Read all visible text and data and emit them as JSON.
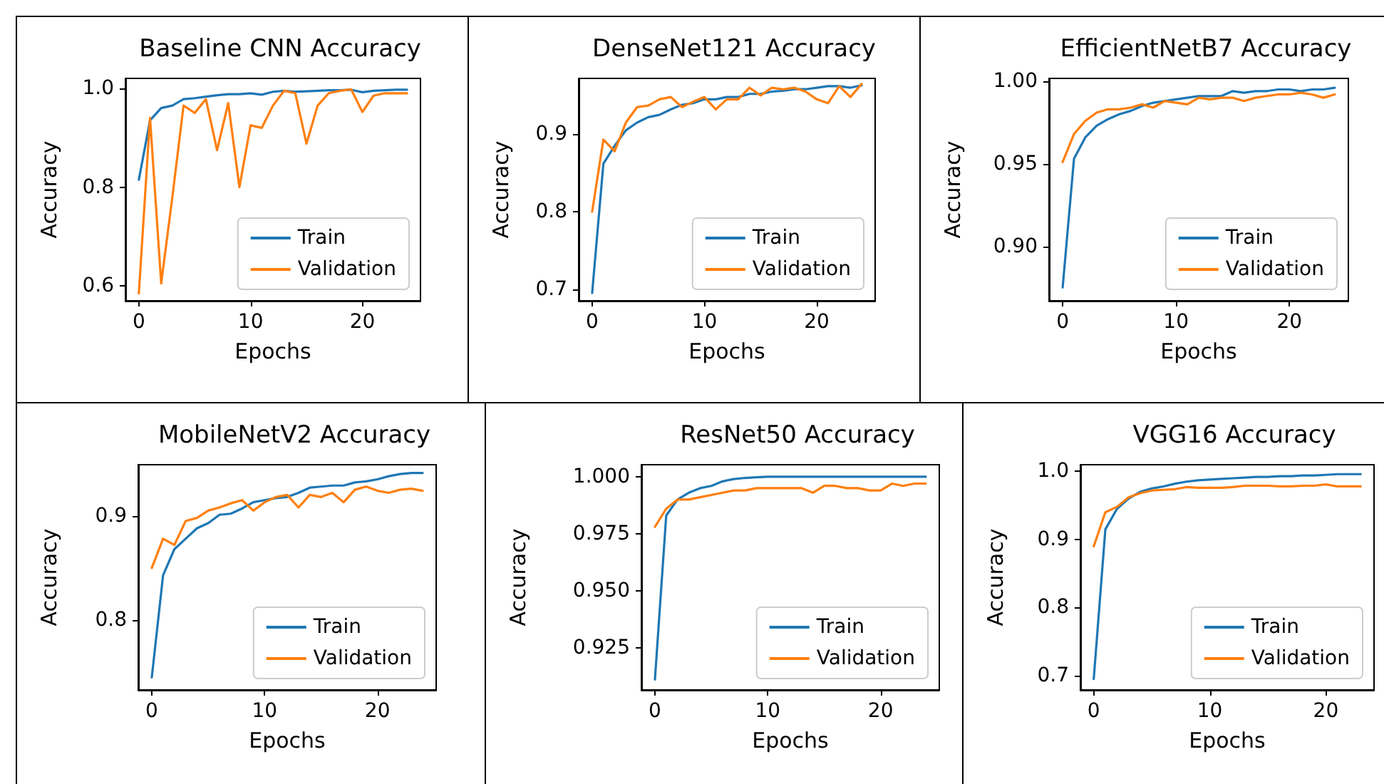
{
  "chart_data": [
    {
      "type": "line",
      "title": "Baseline CNN Accuracy",
      "xlabel": "Epochs",
      "ylabel": "Accuracy",
      "legend": "bottom right",
      "marker": "none",
      "line_style": "solid",
      "grid": false,
      "x": [
        0,
        1,
        2,
        3,
        4,
        5,
        6,
        7,
        8,
        9,
        10,
        11,
        12,
        13,
        14,
        15,
        16,
        17,
        18,
        19,
        20,
        21,
        22,
        23,
        24
      ],
      "xlim": [
        -1.2,
        25.2
      ],
      "xticks": [
        0,
        10,
        20
      ],
      "ylim": [
        0.57,
        1.02
      ],
      "yticks": [
        0.6,
        0.8,
        {
          "value": 1,
          "label": "1.0"
        }
      ],
      "series": [
        {
          "name": "Train",
          "color": "#1f77b4",
          "values": [
            0.815,
            0.935,
            0.96,
            0.965,
            0.978,
            0.98,
            0.983,
            0.986,
            0.988,
            0.988,
            0.99,
            0.987,
            0.993,
            0.995,
            0.993,
            0.994,
            0.995,
            0.996,
            0.996,
            0.997,
            0.992,
            0.995,
            0.996,
            0.997,
            0.997
          ]
        },
        {
          "name": "Validation",
          "color": "#ff7f0e",
          "values": [
            0.585,
            0.94,
            0.605,
            0.78,
            0.965,
            0.95,
            0.978,
            0.875,
            0.97,
            0.8,
            0.925,
            0.92,
            0.965,
            0.995,
            0.99,
            0.888,
            0.965,
            0.99,
            0.995,
            0.998,
            0.952,
            0.985,
            0.99,
            0.99,
            0.99
          ]
        }
      ]
    },
    {
      "type": "line",
      "title": "DenseNet121 Accuracy",
      "xlabel": "Epochs",
      "ylabel": "Accuracy",
      "legend": "bottom right",
      "marker": "none",
      "line_style": "solid",
      "grid": false,
      "x": [
        0,
        1,
        2,
        3,
        4,
        5,
        6,
        7,
        8,
        9,
        10,
        11,
        12,
        13,
        14,
        15,
        16,
        17,
        18,
        19,
        20,
        21,
        22,
        23,
        24
      ],
      "xlim": [
        -1.2,
        25.2
      ],
      "xticks": [
        0,
        10,
        20
      ],
      "ylim": [
        0.685,
        0.972
      ],
      "yticks": [
        0.7,
        0.8,
        0.9
      ],
      "series": [
        {
          "name": "Train",
          "color": "#1f77b4",
          "values": [
            0.695,
            0.862,
            0.885,
            0.905,
            0.915,
            0.922,
            0.925,
            0.932,
            0.938,
            0.94,
            0.945,
            0.945,
            0.948,
            0.948,
            0.952,
            0.952,
            0.955,
            0.956,
            0.958,
            0.958,
            0.96,
            0.962,
            0.962,
            0.96,
            0.963
          ]
        },
        {
          "name": "Validation",
          "color": "#ff7f0e",
          "values": [
            0.8,
            0.893,
            0.878,
            0.915,
            0.935,
            0.937,
            0.945,
            0.948,
            0.935,
            0.942,
            0.948,
            0.932,
            0.945,
            0.945,
            0.96,
            0.95,
            0.96,
            0.958,
            0.96,
            0.955,
            0.945,
            0.94,
            0.962,
            0.948,
            0.965
          ]
        }
      ]
    },
    {
      "type": "line",
      "title": "EfficientNetB7 Accuracy",
      "xlabel": "Epochs",
      "ylabel": "Accuracy",
      "legend": "bottom right",
      "marker": "none",
      "line_style": "solid",
      "grid": false,
      "x": [
        0,
        1,
        2,
        3,
        4,
        5,
        6,
        7,
        8,
        9,
        10,
        11,
        12,
        13,
        14,
        15,
        16,
        17,
        18,
        19,
        20,
        21,
        22,
        23,
        24
      ],
      "xlim": [
        -1.2,
        25.2
      ],
      "xticks": [
        0,
        10,
        20
      ],
      "ylim": [
        0.867,
        1.0017
      ],
      "yticks": [
        {
          "value": 0.9,
          "label": "0.90"
        },
        0.95,
        {
          "value": 1,
          "label": "1.00"
        }
      ],
      "series": [
        {
          "name": "Train",
          "color": "#1f77b4",
          "values": [
            0.875,
            0.953,
            0.966,
            0.973,
            0.977,
            0.98,
            0.982,
            0.985,
            0.987,
            0.988,
            0.989,
            0.99,
            0.991,
            0.991,
            0.991,
            0.994,
            0.993,
            0.994,
            0.994,
            0.995,
            0.995,
            0.994,
            0.995,
            0.995,
            0.996
          ]
        },
        {
          "name": "Validation",
          "color": "#ff7f0e",
          "values": [
            0.951,
            0.968,
            0.976,
            0.981,
            0.983,
            0.983,
            0.984,
            0.986,
            0.984,
            0.988,
            0.987,
            0.986,
            0.99,
            0.989,
            0.99,
            0.99,
            0.988,
            0.99,
            0.991,
            0.992,
            0.992,
            0.993,
            0.992,
            0.99,
            0.992
          ]
        }
      ]
    },
    {
      "type": "line",
      "title": "MobileNetV2 Accuracy",
      "xlabel": "Epochs",
      "ylabel": "Accuracy",
      "legend": "bottom right",
      "marker": "none",
      "line_style": "solid",
      "grid": false,
      "x": [
        0,
        1,
        2,
        3,
        4,
        5,
        6,
        7,
        8,
        9,
        10,
        11,
        12,
        13,
        14,
        15,
        16,
        17,
        18,
        19,
        20,
        21,
        22,
        23,
        24
      ],
      "xlim": [
        -1.2,
        25.2
      ],
      "xticks": [
        0,
        10,
        20
      ],
      "ylim": [
        0.733,
        0.949
      ],
      "yticks": [
        0.8,
        0.9
      ],
      "series": [
        {
          "name": "Train",
          "color": "#1f77b4",
          "values": [
            0.745,
            0.843,
            0.868,
            0.878,
            0.888,
            0.893,
            0.901,
            0.902,
            0.907,
            0.913,
            0.915,
            0.917,
            0.918,
            0.922,
            0.927,
            0.928,
            0.929,
            0.929,
            0.932,
            0.933,
            0.935,
            0.938,
            0.94,
            0.941,
            0.941
          ]
        },
        {
          "name": "Validation",
          "color": "#ff7f0e",
          "values": [
            0.85,
            0.878,
            0.872,
            0.895,
            0.898,
            0.905,
            0.908,
            0.912,
            0.915,
            0.905,
            0.913,
            0.918,
            0.92,
            0.908,
            0.92,
            0.918,
            0.922,
            0.913,
            0.925,
            0.928,
            0.924,
            0.922,
            0.925,
            0.926,
            0.924
          ]
        }
      ]
    },
    {
      "type": "line",
      "title": "ResNet50 Accuracy",
      "xlabel": "Epochs",
      "ylabel": "Accuracy",
      "legend": "bottom right",
      "marker": "none",
      "line_style": "solid",
      "grid": false,
      "x": [
        0,
        1,
        2,
        3,
        4,
        5,
        6,
        7,
        8,
        9,
        10,
        11,
        12,
        13,
        14,
        15,
        16,
        17,
        18,
        19,
        20,
        21,
        22,
        23,
        24
      ],
      "xlim": [
        -1.2,
        25.2
      ],
      "xticks": [
        0,
        10,
        20
      ],
      "ylim": [
        0.9064,
        1.0053
      ],
      "yticks": [
        {
          "value": 0.925,
          "label": "0.925"
        },
        {
          "value": 0.95,
          "label": "0.950"
        },
        {
          "value": 0.975,
          "label": "0.975"
        },
        {
          "value": 1,
          "label": "1.000"
        }
      ],
      "series": [
        {
          "name": "Train",
          "color": "#1f77b4",
          "values": [
            0.911,
            0.983,
            0.99,
            0.993,
            0.995,
            0.996,
            0.998,
            0.999,
            0.9995,
            0.9998,
            1,
            1,
            1,
            1,
            1,
            1,
            1,
            1,
            1,
            1,
            1,
            1,
            1,
            1,
            1
          ]
        },
        {
          "name": "Validation",
          "color": "#ff7f0e",
          "values": [
            0.978,
            0.986,
            0.99,
            0.99,
            0.991,
            0.992,
            0.993,
            0.994,
            0.994,
            0.995,
            0.995,
            0.995,
            0.995,
            0.995,
            0.993,
            0.996,
            0.996,
            0.995,
            0.995,
            0.994,
            0.994,
            0.997,
            0.996,
            0.997,
            0.997
          ]
        }
      ]
    },
    {
      "type": "line",
      "title": "VGG16 Accuracy",
      "xlabel": "Epochs",
      "ylabel": "Accuracy",
      "legend": "bottom right",
      "marker": "none",
      "line_style": "solid",
      "grid": false,
      "x": [
        0,
        1,
        2,
        3,
        4,
        5,
        6,
        7,
        8,
        9,
        10,
        11,
        12,
        13,
        14,
        15,
        16,
        17,
        18,
        19,
        20,
        21,
        22,
        23
      ],
      "xlim": [
        -1.15,
        24.15
      ],
      "xticks": [
        0,
        10,
        20
      ],
      "ylim": [
        0.679,
        1.0099
      ],
      "yticks": [
        0.7,
        0.8,
        0.9,
        {
          "value": 1,
          "label": "1.0"
        }
      ],
      "series": [
        {
          "name": "Train",
          "color": "#1f77b4",
          "values": [
            0.695,
            0.915,
            0.945,
            0.96,
            0.97,
            0.975,
            0.978,
            0.982,
            0.985,
            0.987,
            0.988,
            0.989,
            0.99,
            0.991,
            0.992,
            0.992,
            0.993,
            0.993,
            0.994,
            0.994,
            0.995,
            0.996,
            0.996,
            0.996
          ]
        },
        {
          "name": "Validation",
          "color": "#ff7f0e",
          "values": [
            0.89,
            0.94,
            0.948,
            0.962,
            0.968,
            0.972,
            0.973,
            0.974,
            0.977,
            0.976,
            0.976,
            0.976,
            0.977,
            0.979,
            0.979,
            0.979,
            0.978,
            0.978,
            0.979,
            0.979,
            0.981,
            0.978,
            0.978,
            0.978
          ]
        }
      ]
    }
  ]
}
